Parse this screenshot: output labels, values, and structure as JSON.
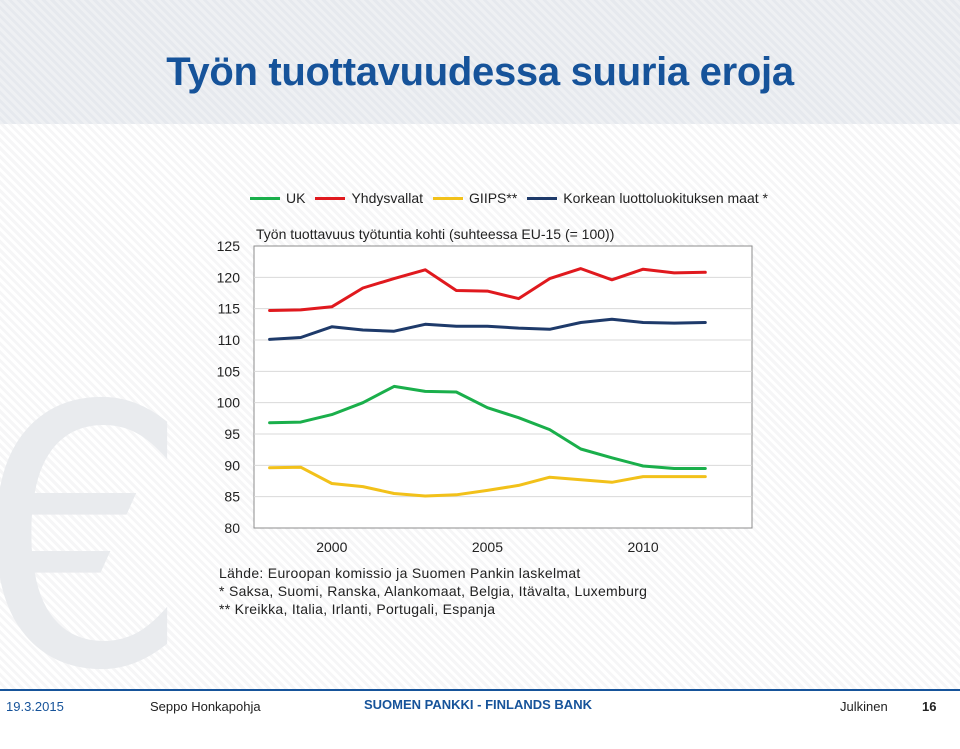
{
  "slide": {
    "title": "Työn tuottavuudessa suuria eroja"
  },
  "chart_data": {
    "type": "line",
    "subtitle": "Työn tuottavuus työtuntia kohti (suhteessa EU-15 (= 100))",
    "x": [
      1998,
      1999,
      2000,
      2001,
      2002,
      2003,
      2004,
      2005,
      2006,
      2007,
      2008,
      2009,
      2010,
      2011,
      2012,
      2013
    ],
    "x_ticks": [
      "2000",
      "2005",
      "2010"
    ],
    "y_ticks": [
      "80",
      "85",
      "90",
      "95",
      "100",
      "105",
      "110",
      "115",
      "120",
      "125"
    ],
    "ylim": [
      80,
      125
    ],
    "grid": "horizontal",
    "legend_position": "top",
    "series": [
      {
        "name": "UK",
        "color": "#1aaf4b",
        "values": [
          96.8,
          96.9,
          98.1,
          100.0,
          102.6,
          101.8,
          101.7,
          99.2,
          97.6,
          95.7,
          92.6,
          91.2,
          89.9,
          89.5,
          89.5,
          null
        ]
      },
      {
        "name": "Yhdysvallat",
        "color": "#e0191e",
        "values": [
          114.7,
          114.8,
          115.3,
          118.3,
          119.8,
          121.2,
          117.9,
          117.8,
          116.6,
          119.8,
          121.4,
          119.6,
          121.3,
          120.7,
          120.8,
          null
        ]
      },
      {
        "name": "GIIPS**",
        "color": "#f2c11a",
        "values": [
          89.6,
          89.7,
          87.1,
          86.6,
          85.5,
          85.1,
          85.3,
          86.0,
          86.8,
          88.1,
          87.7,
          87.3,
          88.2,
          88.2,
          88.2,
          null
        ]
      },
      {
        "name": "Korkean luottoluokituksen maat *",
        "color": "#1e3a6a",
        "values": [
          110.1,
          110.4,
          112.1,
          111.6,
          111.4,
          112.5,
          112.2,
          112.2,
          111.9,
          111.7,
          112.8,
          113.3,
          112.8,
          112.7,
          112.8,
          null
        ]
      }
    ]
  },
  "notes": {
    "source": "Lähde: Euroopan komissio ja Suomen Pankin laskelmat",
    "note1": "* Saksa, Suomi, Ranska, Alankomaat, Belgia, Itävalta, Luxemburg",
    "note2": "** Kreikka, Italia, Irlanti, Portugali, Espanja"
  },
  "footer": {
    "date": "19.3.2015",
    "author": "Seppo Honkapohja",
    "bank": "SUOMEN PANKKI - FINLANDS BANK",
    "classification": "Julkinen",
    "page": "16"
  },
  "icons": {
    "watermark": "euro-sign-icon"
  },
  "colors": {
    "title": "#16539a",
    "gridline": "#d9d9d9"
  }
}
